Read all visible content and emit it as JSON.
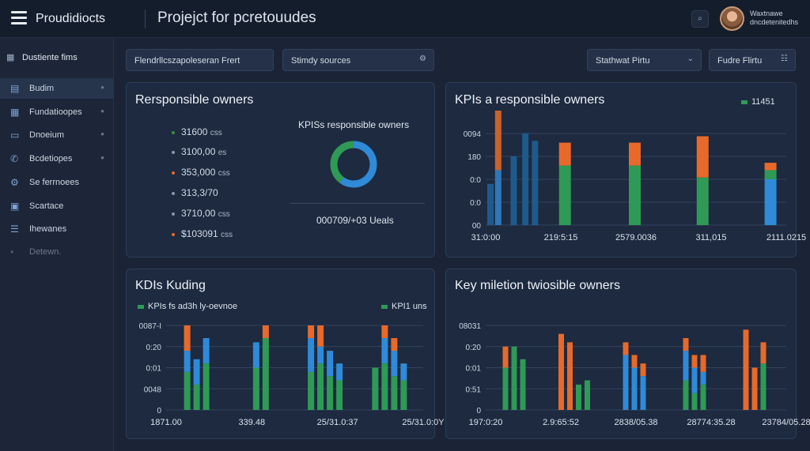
{
  "header": {
    "app_name": "Proudidiocts",
    "project_title": "Projejct for pcretouudes",
    "search_icon": "search-icon",
    "user_name_line1": "Waxtnawe",
    "user_name_line2": "dncdetenitedhs"
  },
  "sidebar": {
    "title": "Dustiente fims",
    "items": [
      {
        "label": "Budim",
        "icon": "dashboard-icon"
      },
      {
        "label": "Fundatioopes",
        "icon": "grid-icon"
      },
      {
        "label": "Dnoeium",
        "icon": "document-icon"
      },
      {
        "label": "Bcdetiopes",
        "icon": "phone-icon"
      },
      {
        "label": "Se ferrnoees",
        "icon": "network-icon"
      },
      {
        "label": "Scartace",
        "icon": "monitor-icon"
      },
      {
        "label": "Ihewanes",
        "icon": "list-icon"
      },
      {
        "label": "Detewn.",
        "icon": "settings-icon"
      }
    ]
  },
  "filters": {
    "filter1": "Flendrllcszapoleseran Frert",
    "filter2": "Stimdy sources",
    "filter3": "Stathwat Pirtu",
    "filter4": "Fudre Flirtu"
  },
  "panel_owners": {
    "title": "Rersponsible owners",
    "kpis": [
      {
        "value": "31600",
        "unit": "css",
        "color": "#3b8d3f"
      },
      {
        "value": "3100,00",
        "unit": "es",
        "color": "#8a96a8"
      },
      {
        "value": "353,000",
        "unit": "css",
        "color": "#e8692a"
      },
      {
        "value": "313,3/70",
        "unit": "",
        "color": "#8a96a8"
      },
      {
        "value": "3710,00",
        "unit": "css",
        "color": "#8a96a8"
      },
      {
        "value": "$103091",
        "unit": "css",
        "color": "#e8692a"
      }
    ],
    "donut_title": "KPISs responsible owners",
    "donut_caption": "000709/+03 Ueals",
    "chart_data": {
      "type": "pie",
      "title": "KPISs responsible owners",
      "values": [
        60,
        40
      ],
      "colors": [
        "#2f8ad8",
        "#2f9a55"
      ]
    }
  },
  "panel_kpi": {
    "title": "KPIs a responsible owners",
    "legend_value": "11451",
    "legend_color": "#2f9a55",
    "chart_data": {
      "type": "bar",
      "title": "KPIs a responsible owners",
      "y_ticks": [
        "0094",
        "180",
        "0:0",
        "0:0",
        "00"
      ],
      "x_labels": [
        "31:0:00",
        "219:5:15",
        "2579.0036",
        "311,015",
        "2111.0215"
      ],
      "bars": [
        {
          "slot": 0.0,
          "color": "#1f5a8c",
          "value": 0.45
        },
        {
          "slot": 0.4,
          "color": "#2f77b8",
          "value": 0.6
        },
        {
          "slot": 0.4,
          "color": "#c9622b",
          "value": 0.65,
          "base": 0.6
        },
        {
          "slot": 1.2,
          "color": "#1f5a8c",
          "value": 0.75
        },
        {
          "slot": 1.8,
          "color": "#1f5a8c",
          "value": 1.0
        },
        {
          "slot": 2.3,
          "color": "#1f5a8c",
          "value": 0.92
        },
        {
          "slot": 3.7,
          "color": "#2f9a55",
          "value": 0.65
        },
        {
          "slot": 3.7,
          "color": "#e8692a",
          "value": 0.25,
          "base": 0.65
        },
        {
          "slot": 7.3,
          "color": "#2f9a55",
          "value": 0.65
        },
        {
          "slot": 7.3,
          "color": "#e8692a",
          "value": 0.25,
          "base": 0.65
        },
        {
          "slot": 10.8,
          "color": "#2f9a55",
          "value": 0.52
        },
        {
          "slot": 10.8,
          "color": "#e8692a",
          "value": 0.45,
          "base": 0.52
        },
        {
          "slot": 14.3,
          "color": "#2f8ad8",
          "value": 0.5
        },
        {
          "slot": 14.3,
          "color": "#2f9a55",
          "value": 0.1,
          "base": 0.5
        },
        {
          "slot": 14.3,
          "color": "#e8692a",
          "value": 0.08,
          "base": 0.6
        }
      ]
    }
  },
  "panel_funding": {
    "title": "KDIs Kuding",
    "legend1": "KPIs fs ad3h ly-oevnoe",
    "legend1_color": "#2f9a55",
    "legend2": "KPI1 uns",
    "legend2_color": "#2f9a55",
    "chart_data": {
      "type": "bar",
      "title": "KDIs Kuding",
      "y_ticks": [
        "0087-I",
        "0:20",
        "0:01",
        "0048",
        "0"
      ],
      "x_labels": [
        "1871.00",
        "339.48",
        "25/31.0:37",
        "25/31.0:0Y"
      ],
      "groups": [
        [
          [
            0.45,
            0.25,
            0.3
          ],
          [
            0.3,
            0.3,
            0.0
          ],
          [
            0.55,
            0.3,
            0.0
          ]
        ],
        [
          [
            0.5,
            0.3,
            0.0
          ],
          [
            0.85,
            0.0,
            0.15
          ]
        ],
        [
          [
            0.45,
            0.4,
            0.15
          ],
          [
            0.55,
            0.2,
            0.25
          ],
          [
            0.4,
            0.3,
            0.0
          ],
          [
            0.35,
            0.2,
            0.0
          ]
        ],
        [
          [
            0.5,
            0.0,
            0.0
          ],
          [
            0.55,
            0.3,
            0.15
          ],
          [
            0.4,
            0.3,
            0.15
          ],
          [
            0.35,
            0.2,
            0.0
          ]
        ]
      ]
    }
  },
  "panel_milestone": {
    "title": "Key miletion twiosible owners",
    "chart_data": {
      "type": "bar",
      "title": "Key miletion twiosible owners",
      "y_ticks": [
        "08031",
        "0:20",
        "0:01",
        "0:51",
        "0"
      ],
      "x_labels": [
        "197:0:20",
        "2.9:65:52",
        "2838/05.38",
        "28774:35.28",
        "23784/05.28"
      ],
      "groups": [
        [
          [
            0.5,
            0.0,
            0.25
          ],
          [
            0.75,
            0.0,
            0.0
          ],
          [
            0.6,
            0.0,
            0.0
          ]
        ],
        [
          [
            0.0,
            0.0,
            0.9
          ],
          [
            0.0,
            0.0,
            0.8
          ],
          [
            0.3,
            0.0,
            0.0
          ],
          [
            0.35,
            0.0,
            0.0
          ]
        ],
        [
          [
            0.0,
            0.65,
            0.15
          ],
          [
            0.0,
            0.5,
            0.15
          ],
          [
            0.0,
            0.4,
            0.15
          ]
        ],
        [
          [
            0.35,
            0.35,
            0.15
          ],
          [
            0.2,
            0.3,
            0.15
          ],
          [
            0.3,
            0.15,
            0.2
          ]
        ],
        [
          [
            0.0,
            0.0,
            0.95
          ],
          [
            0.0,
            0.0,
            0.5
          ],
          [
            0.55,
            0.0,
            0.25
          ]
        ]
      ]
    }
  }
}
